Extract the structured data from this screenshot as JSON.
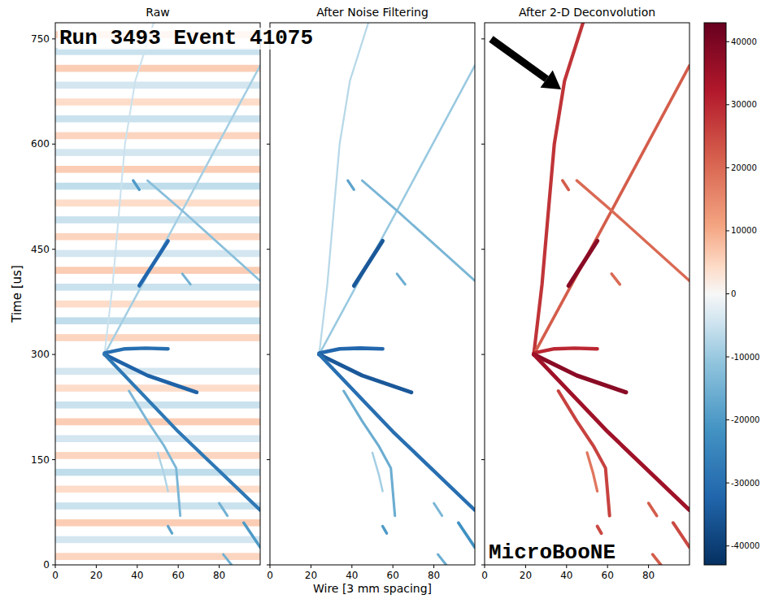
{
  "chart_data": {
    "type": "heatmap",
    "x_label": "Wire [3 mm spacing]",
    "y_label": "Time [us]",
    "xlim": [
      0,
      100
    ],
    "xticks": [
      0,
      20,
      40,
      60,
      80
    ],
    "ylim": [
      0,
      773
    ],
    "yticks": [
      0,
      150,
      300,
      450,
      600,
      750
    ],
    "colorbar": {
      "range": [
        -43000,
        43000
      ],
      "ticks": [
        -40000,
        -30000,
        -20000,
        -10000,
        0,
        10000,
        20000,
        30000,
        40000
      ]
    },
    "panels": [
      {
        "title": "Raw",
        "annotation": "Run 3493 Event 41075",
        "noise_bands": {
          "y": [
            12,
            36,
            60,
            84,
            108,
            132,
            156,
            180,
            204,
            228,
            252,
            276,
            324,
            348,
            372,
            396,
            420,
            444,
            468,
            492,
            516,
            540,
            564,
            588,
            612,
            636,
            660,
            684,
            708,
            732,
            756
          ],
          "values": [
            5000,
            -4000,
            6000,
            -5000,
            4000,
            -6000,
            5000,
            -4000,
            6000,
            -5000,
            4000,
            -4000,
            5000,
            -6000,
            4000,
            -5000,
            6000,
            -4000,
            5000,
            -5000,
            4000,
            -6000,
            6000,
            -4000,
            5000,
            -5000,
            4000,
            -4000,
            6000,
            -5000,
            5000
          ]
        }
      },
      {
        "title": "After Noise Filtering",
        "tick_labels": "x"
      },
      {
        "title": "After 2-D Deconvolution",
        "tick_labels": "x",
        "annotation": "MicroBooNE"
      }
    ],
    "tracks": [
      {
        "x": [
          24,
          28,
          31,
          34,
          39,
          48
        ],
        "y": [
          300,
          400,
          500,
          600,
          690,
          773
        ],
        "values": [
          -5000,
          -7000,
          28000
        ]
      },
      {
        "x": [
          24,
          62,
          100
        ],
        "y": [
          300,
          505,
          712
        ],
        "values": [
          -9000,
          -10000,
          22000
        ]
      },
      {
        "x": [
          45,
          62,
          100
        ],
        "y": [
          548,
          505,
          405
        ],
        "values": [
          -12000,
          -14000,
          20000
        ]
      },
      {
        "x": [
          41,
          55
        ],
        "y": [
          398,
          462
        ],
        "values": [
          -32000,
          -35000,
          38000
        ]
      },
      {
        "x": [
          24,
          34,
          44,
          55
        ],
        "y": [
          302,
          308,
          309,
          308
        ],
        "values": [
          -30000,
          -32000,
          30000
        ]
      },
      {
        "x": [
          24,
          45,
          69
        ],
        "y": [
          300,
          270,
          246
        ],
        "values": [
          -33000,
          -35000,
          38000
        ]
      },
      {
        "x": [
          24,
          60,
          100
        ],
        "y": [
          300,
          190,
          78
        ],
        "values": [
          -28000,
          -30000,
          35000
        ]
      },
      {
        "x": [
          36,
          45,
          53,
          59,
          61
        ],
        "y": [
          248,
          205,
          170,
          138,
          70
        ],
        "values": [
          -14000,
          -16000,
          26000
        ]
      },
      {
        "x": [
          50,
          53,
          55
        ],
        "y": [
          160,
          130,
          105
        ],
        "values": [
          -8000,
          -9000,
          18000
        ]
      },
      {
        "x": [
          38,
          41
        ],
        "y": [
          548,
          535
        ],
        "values": [
          -20000,
          -18000,
          22000
        ]
      },
      {
        "x": [
          62,
          66
        ],
        "y": [
          415,
          400
        ],
        "values": [
          -15000,
          -16000,
          20000
        ]
      },
      {
        "x": [
          80,
          84
        ],
        "y": [
          88,
          70
        ],
        "values": [
          -15000,
          -14000,
          22000
        ]
      },
      {
        "x": [
          92,
          100
        ],
        "y": [
          60,
          25
        ],
        "values": [
          -20000,
          -22000,
          25000
        ]
      },
      {
        "x": [
          55,
          57
        ],
        "y": [
          55,
          45
        ],
        "values": [
          -18000,
          -20000,
          25000
        ]
      },
      {
        "x": [
          82,
          86
        ],
        "y": [
          15,
          0
        ],
        "values": [
          -15000,
          -16000,
          22000
        ]
      }
    ]
  }
}
